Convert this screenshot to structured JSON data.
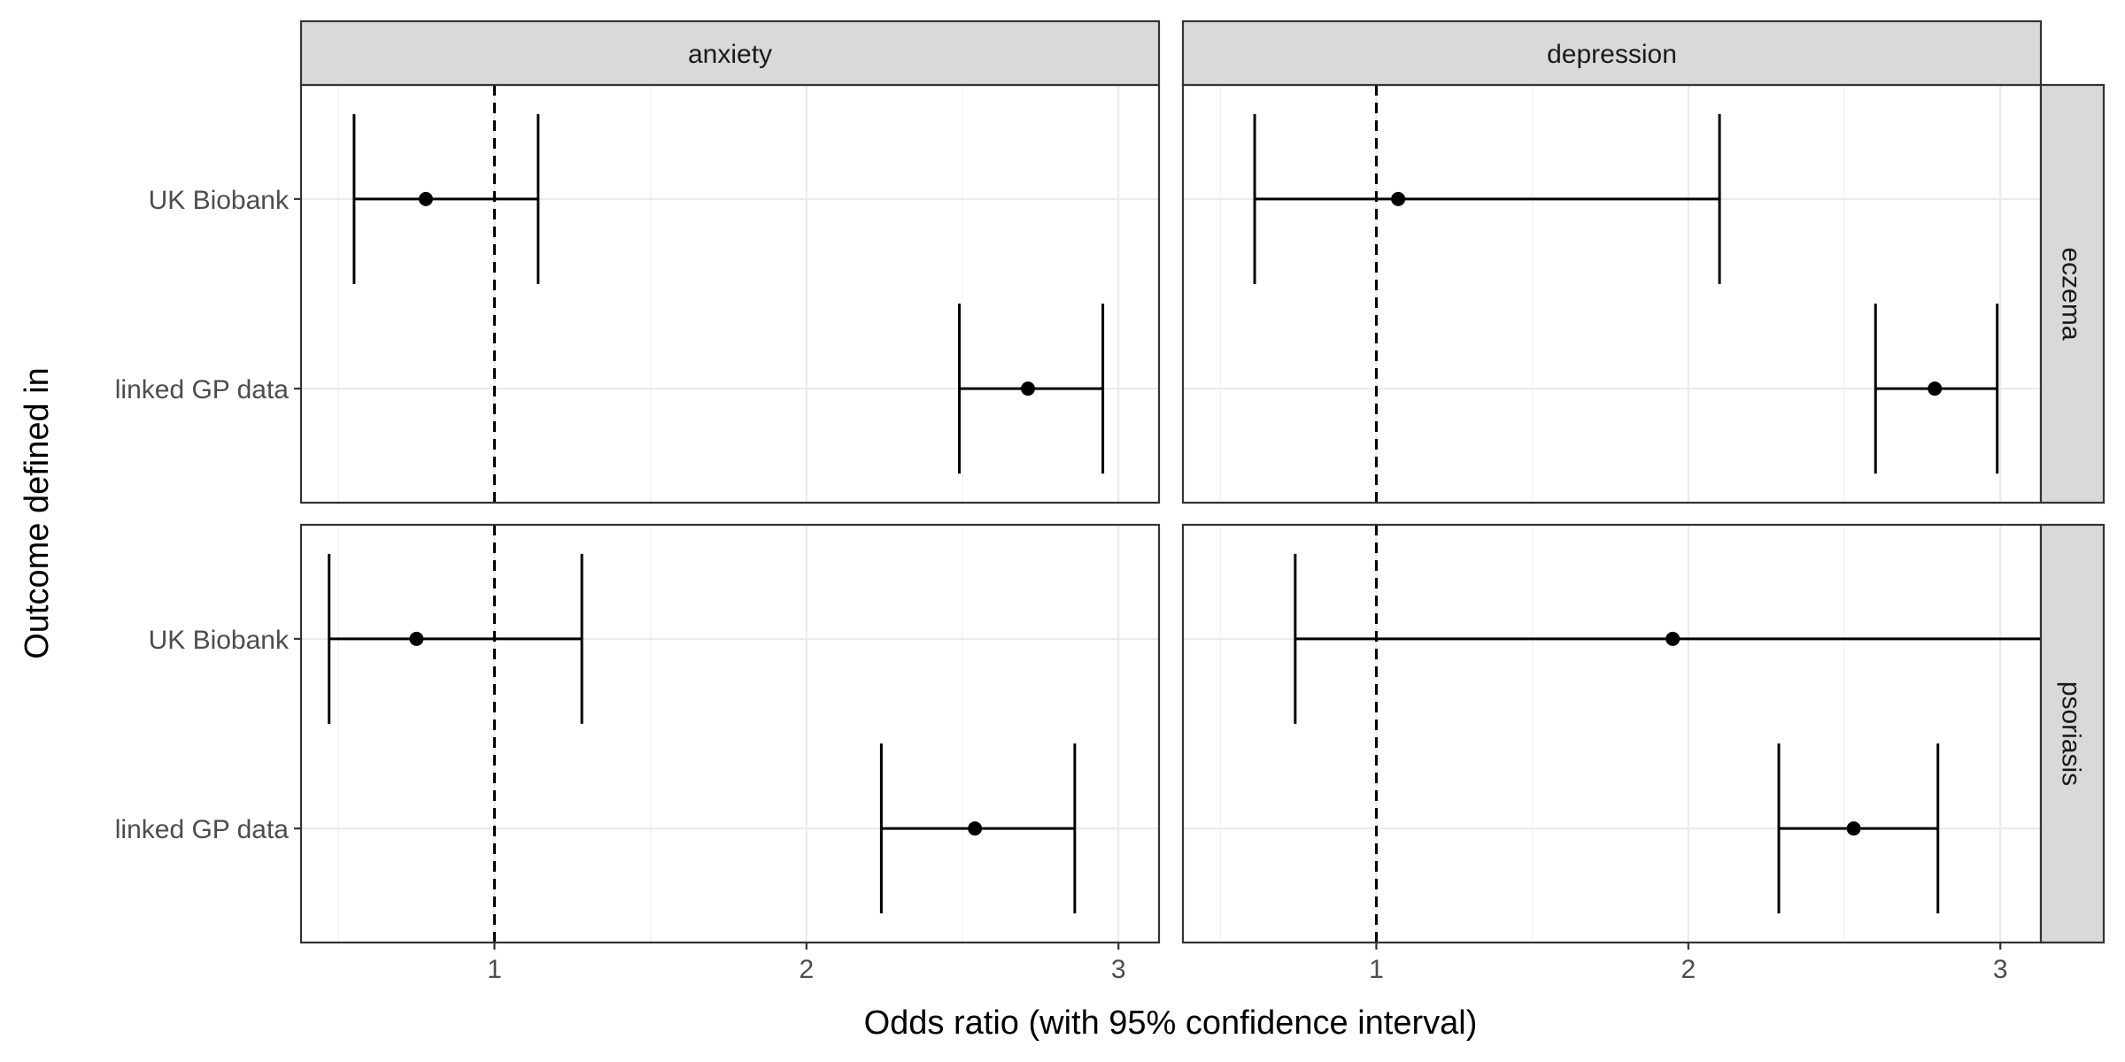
{
  "chart_data": {
    "type": "errorbar",
    "xlabel": "Odds ratio (with 95% confidence interval)",
    "ylabel": "Outcome defined in",
    "x_ticks": [
      1,
      2,
      3
    ],
    "xlim": [
      0.38,
      3.13
    ],
    "y_categories": [
      "UK Biobank",
      "linked GP data"
    ],
    "reference_line": 1,
    "grid": true,
    "facet_columns": [
      "anxiety",
      "depression"
    ],
    "facet_rows": [
      "eczema",
      "psoriasis"
    ],
    "panels": [
      {
        "row": "eczema",
        "col": "anxiety",
        "points": [
          {
            "category": "UK Biobank",
            "estimate": 0.78,
            "lower": 0.55,
            "upper": 1.14
          },
          {
            "category": "linked GP data",
            "estimate": 2.71,
            "lower": 2.49,
            "upper": 2.95
          }
        ]
      },
      {
        "row": "eczema",
        "col": "depression",
        "points": [
          {
            "category": "UK Biobank",
            "estimate": 1.07,
            "lower": 0.61,
            "upper": 2.1
          },
          {
            "category": "linked GP data",
            "estimate": 2.79,
            "lower": 2.6,
            "upper": 2.99
          }
        ]
      },
      {
        "row": "psoriasis",
        "col": "anxiety",
        "points": [
          {
            "category": "UK Biobank",
            "estimate": 0.75,
            "lower": 0.47,
            "upper": 1.28
          },
          {
            "category": "linked GP data",
            "estimate": 2.54,
            "lower": 2.24,
            "upper": 2.86
          }
        ]
      },
      {
        "row": "psoriasis",
        "col": "depression",
        "points": [
          {
            "category": "UK Biobank",
            "estimate": 1.95,
            "lower": 0.74,
            "upper": 3.13
          },
          {
            "category": "linked GP data",
            "estimate": 2.53,
            "lower": 2.29,
            "upper": 2.8
          }
        ]
      }
    ]
  }
}
